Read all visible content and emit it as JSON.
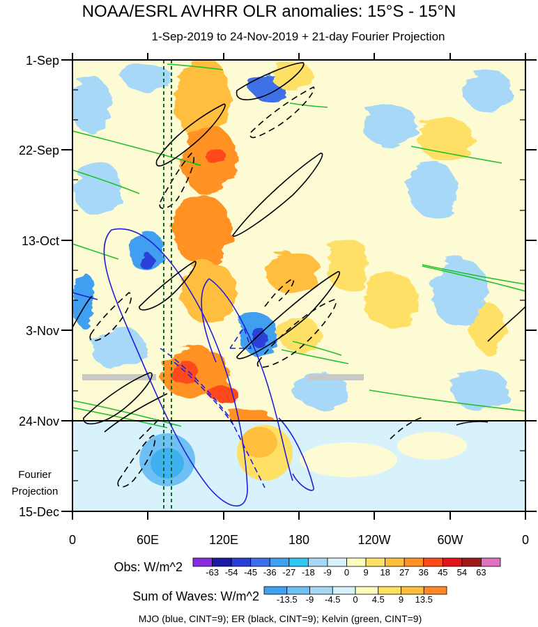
{
  "chart_data": {
    "type": "heatmap",
    "title": "NOAA/ESRL AVHRR OLR anomalies: 15°S - 15°N",
    "subtitle": "1-Sep-2019 to 24-Nov-2019 + 21-day Fourier Projection",
    "y_ticks": [
      "1-Sep",
      "22-Sep",
      "13-Oct",
      "3-Nov",
      "24-Nov",
      "15-Dec"
    ],
    "x_ticks": [
      "0",
      "60E",
      "120E",
      "180",
      "120W",
      "60W",
      "0"
    ],
    "projection_label_line1": "Fourier",
    "projection_label_line2": "Projection",
    "obs_colorbar": {
      "label": "Obs: W/m^2",
      "ticks": [
        "-63",
        "-54",
        "-45",
        "-36",
        "-27",
        "-18",
        "-9",
        "0",
        "9",
        "18",
        "27",
        "36",
        "45",
        "54",
        "63"
      ],
      "colors": [
        "#8a2be2",
        "#1a1aa6",
        "#2a3fd6",
        "#3f6fe8",
        "#3f9ff0",
        "#2ec8f2",
        "#a8d8f8",
        "#d8f2fb",
        "#ffffc0",
        "#ffe066",
        "#ffbe3c",
        "#ff9224",
        "#ff4a1a",
        "#e0141a",
        "#a01818",
        "#e070c0"
      ]
    },
    "waves_colorbar": {
      "label": "Sum of Waves: W/m^2",
      "ticks": [
        "-13.5",
        "-9",
        "-4.5",
        "0",
        "4.5",
        "9",
        "13.5"
      ],
      "colors": [
        "#3f9ff0",
        "#6ec0f4",
        "#a8d8f8",
        "#d8f2fb",
        "#ffffc0",
        "#ffe066",
        "#ffbe3c",
        "#ff8a24"
      ]
    },
    "legend": "MJO (blue, CINT=9); ER (black, CINT=9); Kelvin (green, CINT=9)"
  }
}
